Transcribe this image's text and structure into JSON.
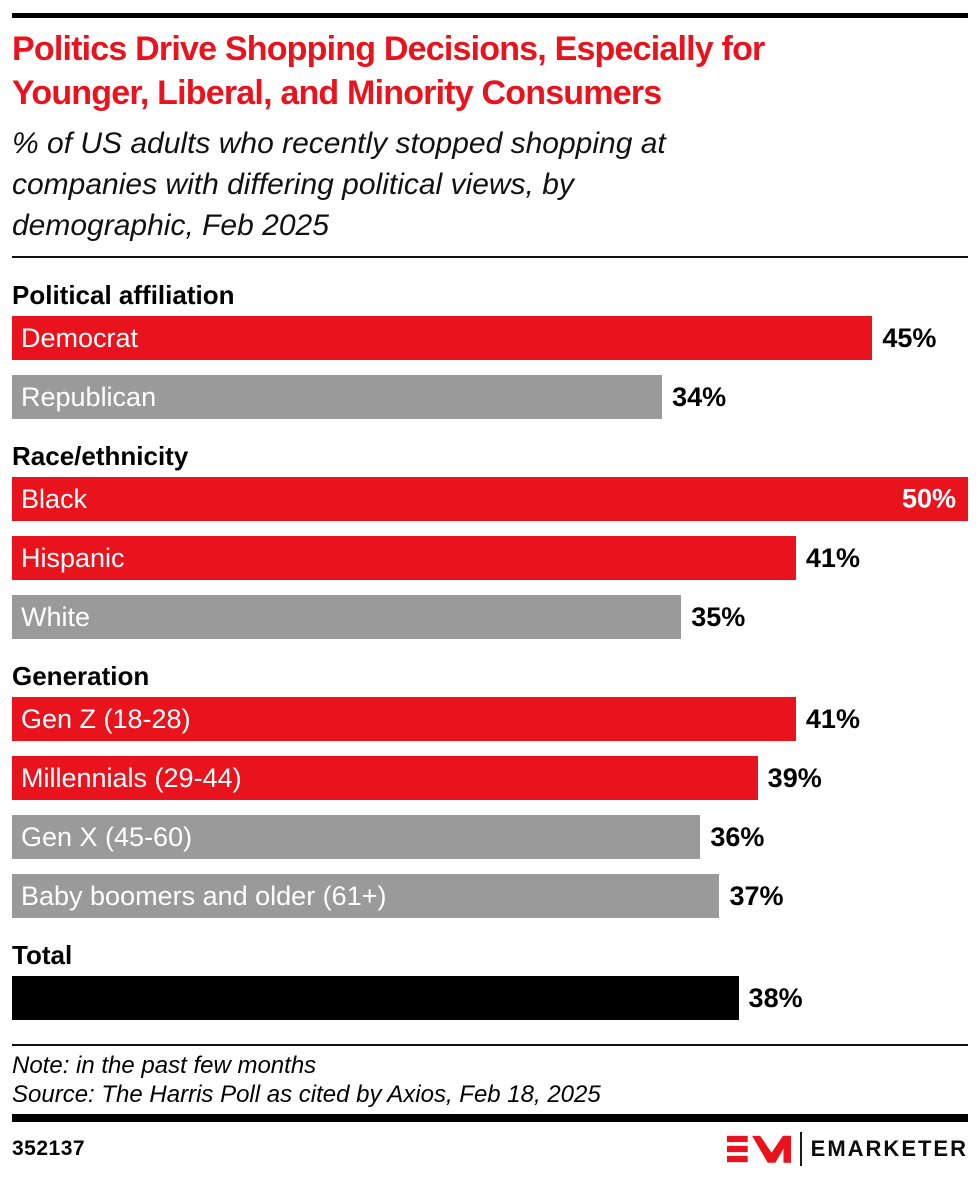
{
  "page": {
    "title_line1": "Politics Drive Shopping Decisions, Especially for",
    "title_line2": "Younger, Liberal, and Minority Consumers",
    "subtitle_line1": "% of US adults who recently stopped shopping at",
    "subtitle_line2": "companies with differing political views, by",
    "subtitle_line3": "demographic, Feb 2025",
    "note": "Note: in the past few months",
    "source": "Source: The Harris Poll as cited by Axios, Feb 18, 2025",
    "chart_id": "352137",
    "brand_name": "EMARKETER"
  },
  "colors": {
    "accent_red": "#e8131d",
    "bar_gray": "#9a9a9a",
    "bar_black": "#000000",
    "logo_red": "#e8131d"
  },
  "chart_data": {
    "type": "bar",
    "orientation": "horizontal",
    "title": "Politics Drive Shopping Decisions, Especially for Younger, Liberal, and Minority Consumers",
    "subtitle": "% of US adults who recently stopped shopping at companies with differing political views, by demographic, Feb 2025",
    "xlabel": "",
    "ylabel": "",
    "xlim": [
      0,
      50
    ],
    "value_suffix": "%",
    "grid": false,
    "legend": false,
    "groups": [
      {
        "header": "Political affiliation",
        "bars": [
          {
            "label": "Democrat",
            "value": 45,
            "display": "45%",
            "color": "#e8131d",
            "value_position": "outside"
          },
          {
            "label": "Republican",
            "value": 34,
            "display": "34%",
            "color": "#9a9a9a",
            "value_position": "outside"
          }
        ]
      },
      {
        "header": "Race/ethnicity",
        "bars": [
          {
            "label": "Black",
            "value": 50,
            "display": "50%",
            "color": "#e8131d",
            "value_position": "inside"
          },
          {
            "label": "Hispanic",
            "value": 41,
            "display": "41%",
            "color": "#e8131d",
            "value_position": "outside"
          },
          {
            "label": "White",
            "value": 35,
            "display": "35%",
            "color": "#9a9a9a",
            "value_position": "outside"
          }
        ]
      },
      {
        "header": "Generation",
        "bars": [
          {
            "label": "Gen Z (18-28)",
            "value": 41,
            "display": "41%",
            "color": "#e8131d",
            "value_position": "outside"
          },
          {
            "label": "Millennials (29-44)",
            "value": 39,
            "display": "39%",
            "color": "#e8131d",
            "value_position": "outside"
          },
          {
            "label": "Gen X (45-60)",
            "value": 36,
            "display": "36%",
            "color": "#9a9a9a",
            "value_position": "outside"
          },
          {
            "label": "Baby boomers and older (61+)",
            "value": 37,
            "display": "37%",
            "color": "#9a9a9a",
            "value_position": "outside"
          }
        ]
      },
      {
        "header": "Total",
        "bars": [
          {
            "label": "",
            "value": 38,
            "display": "38%",
            "color": "#000000",
            "value_position": "outside"
          }
        ]
      }
    ]
  }
}
